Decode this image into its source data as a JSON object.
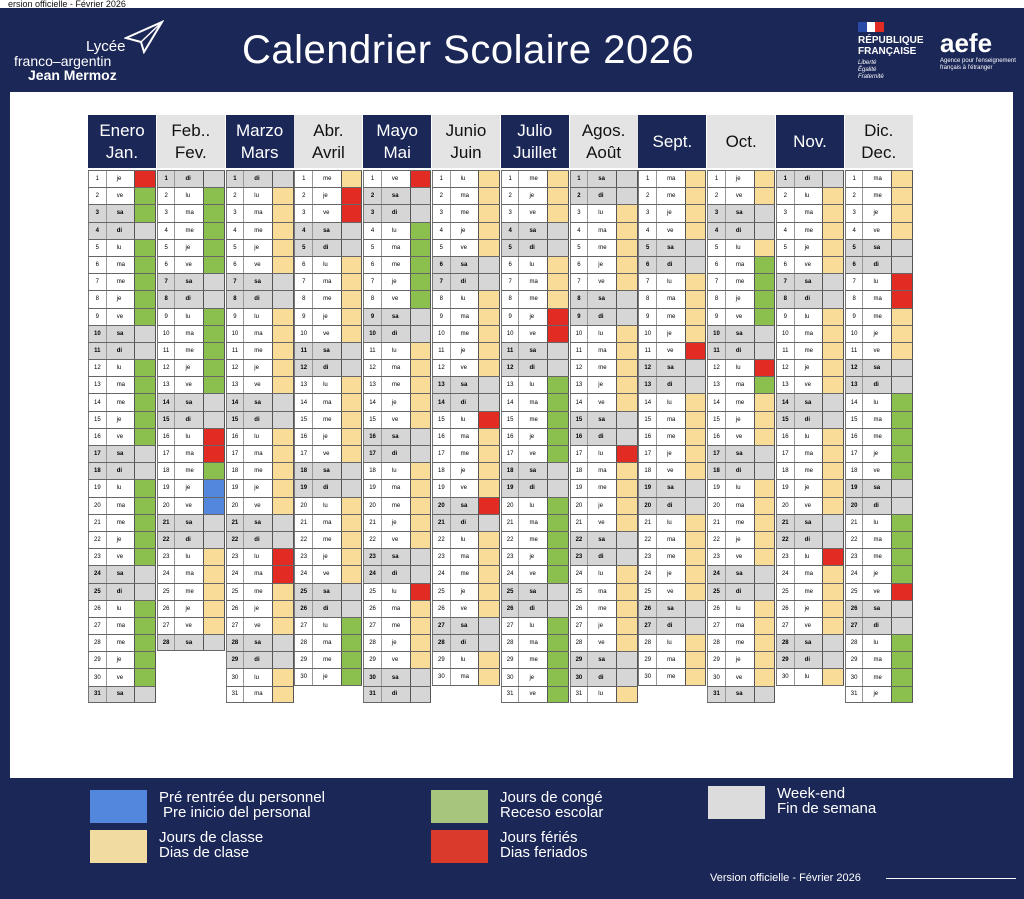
{
  "top_caption": "ersion officielle - Février 2026",
  "school": {
    "line1": "Lycée",
    "line2": "franco–argentin",
    "line3": "Jean Mermoz"
  },
  "title": "Calendrier Scolaire 2026",
  "republic": {
    "line1": "RÉPUBLIQUE",
    "line2": "FRANÇAISE",
    "motto1": "Liberté",
    "motto2": "Égalité",
    "motto3": "Fraternité"
  },
  "aefe": {
    "name": "aefe",
    "tagline": "Agence pour l'enseignement français à l'étranger"
  },
  "colors": {
    "navy": "#1b2757",
    "classe": "#f8dc98",
    "conge": "#8cc04e",
    "ferie": "#e22b22",
    "pre": "#5387dd",
    "weekend": "#d6d6d6"
  },
  "months": [
    {
      "es": "Enero",
      "fr": "Jan.",
      "dark": true,
      "start": 4,
      "days": 31,
      "special": {
        "1": "ferie",
        "2": "conge",
        "3": "conge",
        "5": "conge",
        "6": "conge",
        "7": "conge",
        "8": "conge",
        "9": "conge",
        "12": "conge",
        "13": "conge",
        "14": "conge",
        "15": "conge",
        "16": "conge",
        "19": "conge",
        "20": "conge",
        "21": "conge",
        "22": "conge",
        "23": "conge",
        "26": "conge",
        "27": "conge",
        "28": "conge",
        "29": "conge",
        "30": "conge"
      }
    },
    {
      "es": "Feb..",
      "fr": "Fev.",
      "dark": false,
      "start": 0,
      "days": 28,
      "special": {
        "2": "conge",
        "3": "conge",
        "4": "conge",
        "5": "conge",
        "6": "conge",
        "9": "conge",
        "10": "conge",
        "11": "conge",
        "12": "conge",
        "13": "conge",
        "16": "ferie",
        "17": "ferie",
        "18": "conge",
        "19": "pre",
        "20": "pre"
      }
    },
    {
      "es": "Marzo",
      "fr": "Mars",
      "dark": true,
      "start": 0,
      "days": 31,
      "special": {
        "23": "ferie",
        "24": "ferie"
      }
    },
    {
      "es": "Abr.",
      "fr": "Avril",
      "dark": false,
      "start": 3,
      "days": 30,
      "special": {
        "2": "ferie",
        "3": "ferie",
        "27": "conge",
        "28": "conge",
        "29": "conge",
        "30": "conge"
      }
    },
    {
      "es": "Mayo",
      "fr": "Mai",
      "dark": true,
      "start": 5,
      "days": 31,
      "special": {
        "1": "ferie",
        "4": "conge",
        "5": "conge",
        "6": "conge",
        "7": "conge",
        "8": "conge",
        "25": "ferie"
      }
    },
    {
      "es": "Junio",
      "fr": "Juin",
      "dark": false,
      "start": 1,
      "days": 30,
      "special": {
        "15": "ferie",
        "20": "ferie"
      }
    },
    {
      "es": "Julio",
      "fr": "Juillet",
      "dark": true,
      "start": 3,
      "days": 31,
      "special": {
        "9": "ferie",
        "10": "ferie",
        "13": "conge",
        "14": "conge",
        "15": "conge",
        "16": "conge",
        "17": "conge",
        "20": "conge",
        "21": "conge",
        "22": "conge",
        "23": "conge",
        "24": "conge",
        "27": "conge",
        "28": "conge",
        "29": "conge",
        "30": "conge",
        "31": "conge"
      }
    },
    {
      "es": "Agos.",
      "fr": "Août",
      "dark": false,
      "start": 6,
      "days": 31,
      "special": {
        "17": "ferie"
      }
    },
    {
      "es": "Sept.",
      "fr": "",
      "dark": true,
      "start": 2,
      "days": 30,
      "special": {
        "11": "ferie"
      }
    },
    {
      "es": "Oct.",
      "fr": "",
      "dark": false,
      "start": 4,
      "days": 31,
      "special": {
        "6": "conge",
        "7": "conge",
        "8": "conge",
        "9": "conge",
        "12": "ferie",
        "13": "conge"
      }
    },
    {
      "es": "Nov.",
      "fr": "",
      "dark": true,
      "start": 0,
      "days": 30,
      "special": {
        "23": "ferie"
      }
    },
    {
      "es": "Dic.",
      "fr": "Dec.",
      "dark": false,
      "start": 2,
      "days": 31,
      "special": {
        "7": "ferie",
        "8": "ferie",
        "14": "conge",
        "15": "conge",
        "16": "conge",
        "17": "conge",
        "18": "conge",
        "21": "conge",
        "22": "conge",
        "23": "conge",
        "24": "conge",
        "25": "ferie",
        "28": "conge",
        "29": "conge",
        "30": "conge",
        "31": "conge"
      }
    }
  ],
  "weekday_abbr": [
    "di",
    "lu",
    "ma",
    "me",
    "je",
    "ve",
    "sa"
  ],
  "legend": {
    "pre": {
      "line1": "Pré rentrée du personnel",
      "line2": "Pre inicio del personal"
    },
    "classe": {
      "line1": "Jours de classe",
      "line2": "Dias de clase"
    },
    "conge": {
      "line1": "Jours de congé",
      "line2": "Receso escolar"
    },
    "ferie": {
      "line1": "Jours fériés",
      "line2": "Dias feriados"
    },
    "weekend": {
      "line1": "Week-end",
      "line2": "Fin de semana"
    }
  },
  "footer": "Version officielle - Février 2026"
}
